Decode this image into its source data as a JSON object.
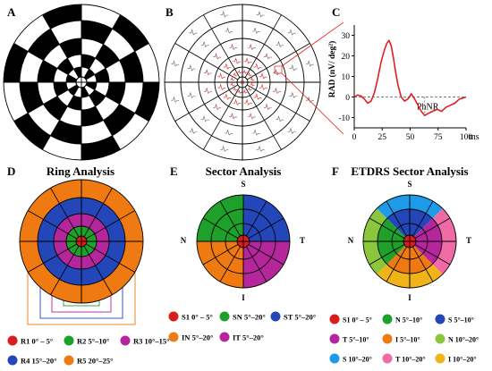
{
  "panels": {
    "A": {
      "letter": "A"
    },
    "B": {
      "letter": "B"
    },
    "C": {
      "letter": "C"
    },
    "D": {
      "letter": "D",
      "title": "Ring Analysis"
    },
    "E": {
      "letter": "E",
      "title": "Sector Analysis"
    },
    "F": {
      "letter": "F",
      "title": "ETDRS Sector Analysis"
    }
  },
  "quadrant_labels": {
    "superior": "S",
    "nasal": "N",
    "temporal": "T",
    "inferior": "I"
  },
  "chart_data": {
    "type": "line",
    "title": "",
    "xlabel": "ms",
    "ylabel": "RAD (nV/ deg²)",
    "xlim": [
      0,
      100
    ],
    "ylim": [
      -15,
      35
    ],
    "xticks": [
      "0",
      "25",
      "50",
      "75",
      "100"
    ],
    "yticks": [
      "-10",
      "0",
      "10",
      "20",
      "30"
    ],
    "baseline_value": 0,
    "annotation": "PhNR",
    "line_color": "#e02020",
    "x": [
      0,
      3,
      6,
      9,
      12,
      15,
      18,
      21,
      24,
      27,
      29,
      31,
      33,
      35,
      37,
      39,
      42,
      45,
      48,
      51,
      54,
      57,
      60,
      63,
      66,
      70,
      74,
      78,
      82,
      86,
      90,
      94,
      97,
      100
    ],
    "y": [
      0,
      1,
      0.5,
      -1,
      -3,
      -2,
      2,
      9,
      17,
      23,
      26,
      27.5,
      25,
      19,
      12,
      6,
      0,
      -2,
      -1,
      1.5,
      -1,
      -4,
      -7,
      -9,
      -8,
      -7,
      -6,
      -7,
      -5,
      -4,
      -3,
      -1,
      -0.5,
      0
    ]
  },
  "legend_D": [
    {
      "label": "R1 0° – 5°",
      "color": "#d91c1c"
    },
    {
      "label": "R2 5°–10°",
      "color": "#1fa02b"
    },
    {
      "label": "R3 10°–15°",
      "color": "#b5269c"
    },
    {
      "label": "R4 15°–20°",
      "color": "#2346b8"
    },
    {
      "label": "R5 20°–25°",
      "color": "#f07a12"
    }
  ],
  "legend_E": [
    {
      "label": "S1 0° – 5°",
      "color": "#d91c1c"
    },
    {
      "label": "SN 5°–20°",
      "color": "#1fa02b"
    },
    {
      "label": "ST 5°–20°",
      "color": "#2346b8"
    },
    {
      "label": "IN 5°–20°",
      "color": "#f07a12"
    },
    {
      "label": "IT 5°–20°",
      "color": "#b5269c"
    }
  ],
  "legend_F": [
    {
      "label": "S1 0° – 5°",
      "color": "#d91c1c"
    },
    {
      "label": "N 5°–10°",
      "color": "#1fa02b"
    },
    {
      "label": "S 5°–10°",
      "color": "#2346b8"
    },
    {
      "label": "T 5°–10°",
      "color": "#b5269c"
    },
    {
      "label": "I 5°–10°",
      "color": "#f07a12"
    },
    {
      "label": "N 10°–20°",
      "color": "#8cc63f"
    },
    {
      "label": "S 10°–20°",
      "color": "#1e9be8"
    },
    {
      "label": "T 10°–20°",
      "color": "#f06aa6"
    },
    {
      "label": "I 10°–20°",
      "color": "#f0b418"
    }
  ],
  "colors": {
    "line": "#e02020",
    "grid_black": "#000000",
    "connector": "#e02020"
  }
}
